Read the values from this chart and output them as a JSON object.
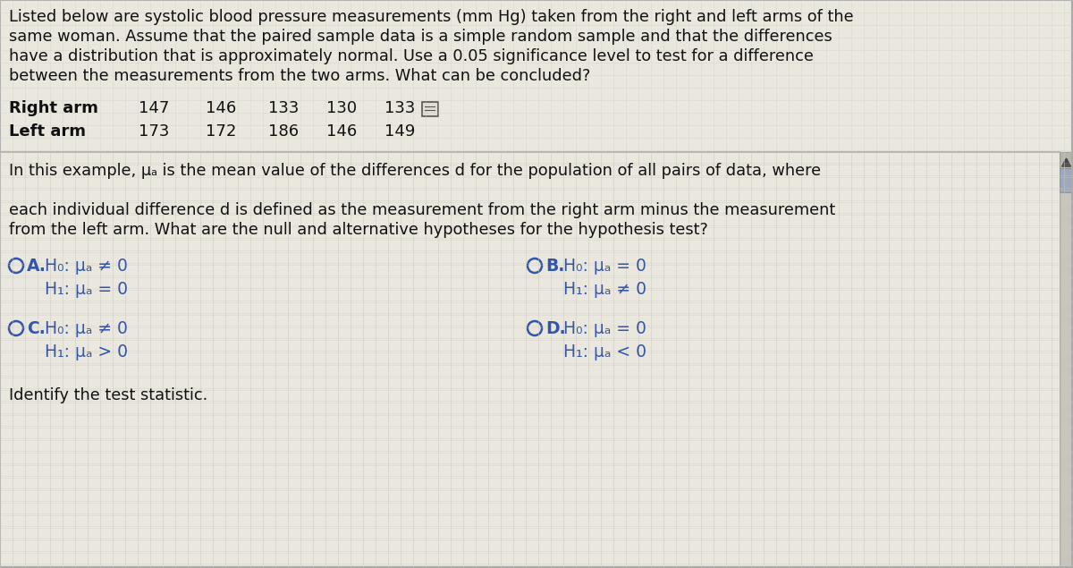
{
  "bg_color": "#dedad2",
  "panel_color": "#e8e4db",
  "border_color": "#aaaaaa",
  "text_color": "#111111",
  "blue_color": "#3355aa",
  "title_lines": [
    "Listed below are systolic blood pressure measurements (mm Hg) taken from the right and left arms of the",
    "same woman. Assume that the paired sample data is a simple random sample and that the differences",
    "have a distribution that is approximately normal. Use a 0.05 significance level to test for a difference",
    "between the measurements from the two arms. What can be concluded?"
  ],
  "right_arm_label": "Right arm",
  "left_arm_label": "Left arm",
  "right_arm_values": [
    "147",
    "146",
    "133",
    "130",
    "133"
  ],
  "left_arm_values": [
    "173",
    "172",
    "186",
    "146",
    "149"
  ],
  "scroll_lines": [
    "In this example, μₐ is the mean value of the differences d for the population of all pairs of data, where",
    "",
    "each individual difference d is defined as the measurement from the right arm minus the measurement",
    "from the left arm. What are the null and alternative hypotheses for the hypothesis test?"
  ],
  "option_A_line1": "H₀: μₐ ≠ 0",
  "option_A_line2": "H₁: μₐ = 0",
  "option_B_line1": "H₀: μₐ = 0",
  "option_B_line2": "H₁: μₐ ≠ 0",
  "option_C_line1": "H₀: μₐ ≠ 0",
  "option_C_line2": "H₁: μₐ > 0",
  "option_D_line1": "H₀: μₐ = 0",
  "option_D_line2": "H₁: μₐ < 0",
  "identify_text": "Identify the test statistic.",
  "font_size_main": 12.8,
  "font_size_data": 13.0,
  "font_size_options": 13.5,
  "scroll_bar_color": "#8b9ab5",
  "scroll_thumb_color": "#5577aa"
}
